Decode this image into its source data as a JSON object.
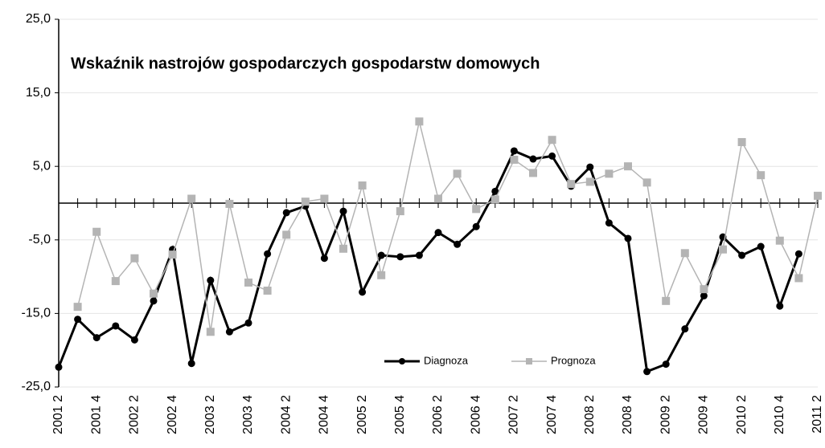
{
  "chart_data": {
    "type": "line",
    "title": "Wskaźnik nastrojów gospodarczych gospodarstw domowych",
    "categories": [
      "2001 2",
      null,
      "2001 4",
      null,
      "2002 2",
      null,
      "2002 4",
      null,
      "2003 2",
      null,
      "2003 4",
      null,
      "2004 2",
      null,
      "2004 4",
      null,
      "2005 2",
      null,
      "2005 4",
      null,
      "2006 2",
      null,
      "2006 4",
      null,
      "2007 2",
      null,
      "2007 4",
      null,
      "2008 2",
      null,
      "2008 4",
      null,
      "2009 2",
      null,
      "2009 4",
      null,
      "2010 2",
      null,
      "2010 4",
      null,
      "2011 2"
    ],
    "series": [
      {
        "name": "Diagnoza",
        "color": "#000000",
        "values": [
          -22.3,
          -15.8,
          -18.3,
          -16.7,
          -18.6,
          -13.3,
          -6.3,
          -21.8,
          -10.5,
          -17.5,
          -16.3,
          -6.9,
          -1.3,
          -0.4,
          -7.5,
          -1.1,
          -12.1,
          -7.1,
          -7.3,
          -7.1,
          -4.0,
          -5.6,
          -3.2,
          1.6,
          7.1,
          6.0,
          6.4,
          2.3,
          4.9,
          -2.7,
          -4.8,
          -22.9,
          -21.9,
          -17.1,
          -12.6,
          -4.6,
          -7.1,
          -5.9,
          -14.0,
          -6.9,
          null
        ]
      },
      {
        "name": "Prognoza",
        "color": "#b4b4b4",
        "values": [
          null,
          -14.1,
          -3.9,
          -10.6,
          -7.5,
          -12.3,
          -7.0,
          0.6,
          -17.5,
          -0.1,
          -10.8,
          -11.9,
          -4.3,
          0.2,
          0.6,
          -6.2,
          2.4,
          -9.8,
          -1.1,
          11.1,
          0.6,
          4.0,
          -0.8,
          0.5,
          5.9,
          4.1,
          8.6,
          2.6,
          2.9,
          4.0,
          5.0,
          2.8,
          -13.3,
          -6.8,
          -11.7,
          -6.3,
          8.3,
          3.8,
          -5.1,
          -10.2,
          1.0
        ]
      }
    ],
    "ylim": [
      -25,
      25
    ],
    "yticks": [
      {
        "value": -25,
        "label": "-25,0"
      },
      {
        "value": -15,
        "label": "-15,0"
      },
      {
        "value": -5,
        "label": "-5,0"
      },
      {
        "value": 5,
        "label": "5,0"
      },
      {
        "value": 15,
        "label": "15,0"
      },
      {
        "value": 25,
        "label": "25,0"
      }
    ],
    "grid": true
  }
}
